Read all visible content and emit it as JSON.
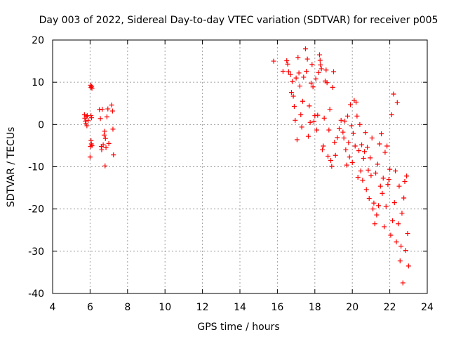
{
  "chart_data": {
    "type": "scatter",
    "title": "Day 003 of 2022, Sidereal Day-to-day VTEC variation (SDTVAR) for receiver p005",
    "xlabel": "GPS time / hours",
    "ylabel": "SDTVAR / TECUs",
    "xlim": [
      4,
      24
    ],
    "ylim": [
      -40,
      20
    ],
    "xticks": [
      "4",
      "6",
      "8",
      "10",
      "12",
      "14",
      "16",
      "18",
      "20",
      "22",
      "24"
    ],
    "yticks": [
      "20",
      "10",
      "0",
      "-10",
      "-20",
      "-30",
      "-40"
    ],
    "grid": true,
    "marker": "+",
    "color": "#ff0000",
    "series": [
      {
        "name": "SDTVAR",
        "points": [
          [
            5.7,
            2.3
          ],
          [
            5.72,
            1.5
          ],
          [
            5.75,
            0.8
          ],
          [
            5.78,
            0.2
          ],
          [
            5.8,
            1.9
          ],
          [
            5.83,
            -0.3
          ],
          [
            5.85,
            2.1
          ],
          [
            5.9,
            1.0
          ],
          [
            6.0,
            -7.7
          ],
          [
            6.02,
            -5.2
          ],
          [
            6.05,
            -3.8
          ],
          [
            6.07,
            -4.6
          ],
          [
            6.1,
            -5.0
          ],
          [
            6.05,
            2.1
          ],
          [
            6.08,
            1.6
          ],
          [
            6.03,
            9.3
          ],
          [
            6.05,
            8.8
          ],
          [
            6.08,
            9.0
          ],
          [
            6.1,
            8.6
          ],
          [
            6.5,
            3.5
          ],
          [
            6.55,
            1.4
          ],
          [
            6.6,
            -5.2
          ],
          [
            6.62,
            -6.0
          ],
          [
            6.65,
            3.6
          ],
          [
            6.7,
            -4.8
          ],
          [
            6.75,
            -2.5
          ],
          [
            6.78,
            -1.6
          ],
          [
            6.8,
            -9.8
          ],
          [
            6.82,
            -3.3
          ],
          [
            6.85,
            -5.5
          ],
          [
            6.9,
            1.8
          ],
          [
            6.95,
            3.7
          ],
          [
            7.0,
            -4.5
          ],
          [
            7.15,
            4.6
          ],
          [
            7.2,
            3.2
          ],
          [
            7.22,
            -1.1
          ],
          [
            7.25,
            -7.2
          ],
          [
            15.8,
            15.0
          ],
          [
            16.3,
            12.6
          ],
          [
            16.5,
            15.1
          ],
          [
            16.55,
            14.3
          ],
          [
            16.6,
            12.5
          ],
          [
            16.7,
            11.8
          ],
          [
            16.75,
            7.6
          ],
          [
            16.8,
            10.2
          ],
          [
            16.85,
            6.7
          ],
          [
            16.9,
            4.3
          ],
          [
            16.95,
            1.0
          ],
          [
            17.0,
            11.0
          ],
          [
            17.05,
            -3.6
          ],
          [
            17.1,
            15.9
          ],
          [
            17.15,
            12.2
          ],
          [
            17.2,
            9.1
          ],
          [
            17.25,
            2.3
          ],
          [
            17.3,
            -0.6
          ],
          [
            17.35,
            5.5
          ],
          [
            17.4,
            11.2
          ],
          [
            17.5,
            17.9
          ],
          [
            17.55,
            12.6
          ],
          [
            17.6,
            15.5
          ],
          [
            17.65,
            -2.8
          ],
          [
            17.7,
            4.4
          ],
          [
            17.75,
            0.5
          ],
          [
            17.8,
            9.8
          ],
          [
            17.85,
            14.2
          ],
          [
            17.9,
            8.9
          ],
          [
            17.95,
            0.7
          ],
          [
            18.0,
            2.1
          ],
          [
            18.05,
            10.8
          ],
          [
            18.1,
            -1.3
          ],
          [
            18.15,
            2.2
          ],
          [
            18.2,
            12.3
          ],
          [
            18.25,
            16.5
          ],
          [
            18.28,
            15.2
          ],
          [
            18.3,
            14.1
          ],
          [
            18.35,
            13.2
          ],
          [
            18.4,
            -6.0
          ],
          [
            18.45,
            -5.1
          ],
          [
            18.5,
            1.5
          ],
          [
            18.55,
            10.3
          ],
          [
            18.6,
            12.9
          ],
          [
            18.65,
            9.9
          ],
          [
            18.7,
            -7.5
          ],
          [
            18.75,
            -1.3
          ],
          [
            18.8,
            3.6
          ],
          [
            18.85,
            -8.5
          ],
          [
            18.9,
            -9.9
          ],
          [
            18.95,
            8.8
          ],
          [
            19.0,
            12.5
          ],
          [
            19.05,
            -4.2
          ],
          [
            19.1,
            -7.3
          ],
          [
            19.2,
            -3.1
          ],
          [
            19.3,
            -1.0
          ],
          [
            19.4,
            1.0
          ],
          [
            19.5,
            -1.8
          ],
          [
            19.55,
            -3.2
          ],
          [
            19.6,
            0.8
          ],
          [
            19.65,
            -6.0
          ],
          [
            19.7,
            -9.6
          ],
          [
            19.75,
            2.0
          ],
          [
            19.8,
            -4.3
          ],
          [
            19.85,
            -7.7
          ],
          [
            19.9,
            4.7
          ],
          [
            19.95,
            -0.3
          ],
          [
            20.0,
            -9.0
          ],
          [
            20.05,
            -2.1
          ],
          [
            20.1,
            5.7
          ],
          [
            20.15,
            -5.1
          ],
          [
            20.2,
            5.3
          ],
          [
            20.25,
            2.0
          ],
          [
            20.3,
            -12.5
          ],
          [
            20.35,
            -6.2
          ],
          [
            20.4,
            0.0
          ],
          [
            20.45,
            -11.0
          ],
          [
            20.5,
            -4.8
          ],
          [
            20.55,
            -13.2
          ],
          [
            20.6,
            -8.0
          ],
          [
            20.65,
            -6.4
          ],
          [
            20.7,
            -1.9
          ],
          [
            20.75,
            -15.4
          ],
          [
            20.8,
            -5.4
          ],
          [
            20.85,
            -10.8
          ],
          [
            20.9,
            -17.5
          ],
          [
            20.95,
            -7.9
          ],
          [
            21.0,
            -12.1
          ],
          [
            21.05,
            -3.2
          ],
          [
            21.1,
            -20.0
          ],
          [
            21.15,
            -18.6
          ],
          [
            21.2,
            -23.5
          ],
          [
            21.25,
            -11.5
          ],
          [
            21.3,
            -21.4
          ],
          [
            21.35,
            -9.4
          ],
          [
            21.4,
            -19.2
          ],
          [
            21.45,
            -4.6
          ],
          [
            21.5,
            -14.6
          ],
          [
            21.55,
            -2.2
          ],
          [
            21.6,
            -16.3
          ],
          [
            21.65,
            -12.7
          ],
          [
            21.7,
            -24.2
          ],
          [
            21.75,
            -6.6
          ],
          [
            21.8,
            -19.4
          ],
          [
            21.85,
            -5.1
          ],
          [
            21.9,
            -14.2
          ],
          [
            21.95,
            -13.0
          ],
          [
            22.0,
            -10.6
          ],
          [
            22.05,
            -26.2
          ],
          [
            22.1,
            2.3
          ],
          [
            22.15,
            -22.8
          ],
          [
            22.2,
            7.2
          ],
          [
            22.25,
            -18.5
          ],
          [
            22.3,
            -11.0
          ],
          [
            22.35,
            -27.8
          ],
          [
            22.4,
            5.2
          ],
          [
            22.45,
            -23.5
          ],
          [
            22.5,
            -14.6
          ],
          [
            22.55,
            -32.3
          ],
          [
            22.6,
            -28.8
          ],
          [
            22.65,
            -21.0
          ],
          [
            22.7,
            -37.5
          ],
          [
            22.75,
            -17.4
          ],
          [
            22.8,
            -13.5
          ],
          [
            22.85,
            -29.8
          ],
          [
            22.9,
            -12.2
          ],
          [
            22.95,
            -25.8
          ],
          [
            23.0,
            -33.5
          ]
        ]
      }
    ]
  }
}
